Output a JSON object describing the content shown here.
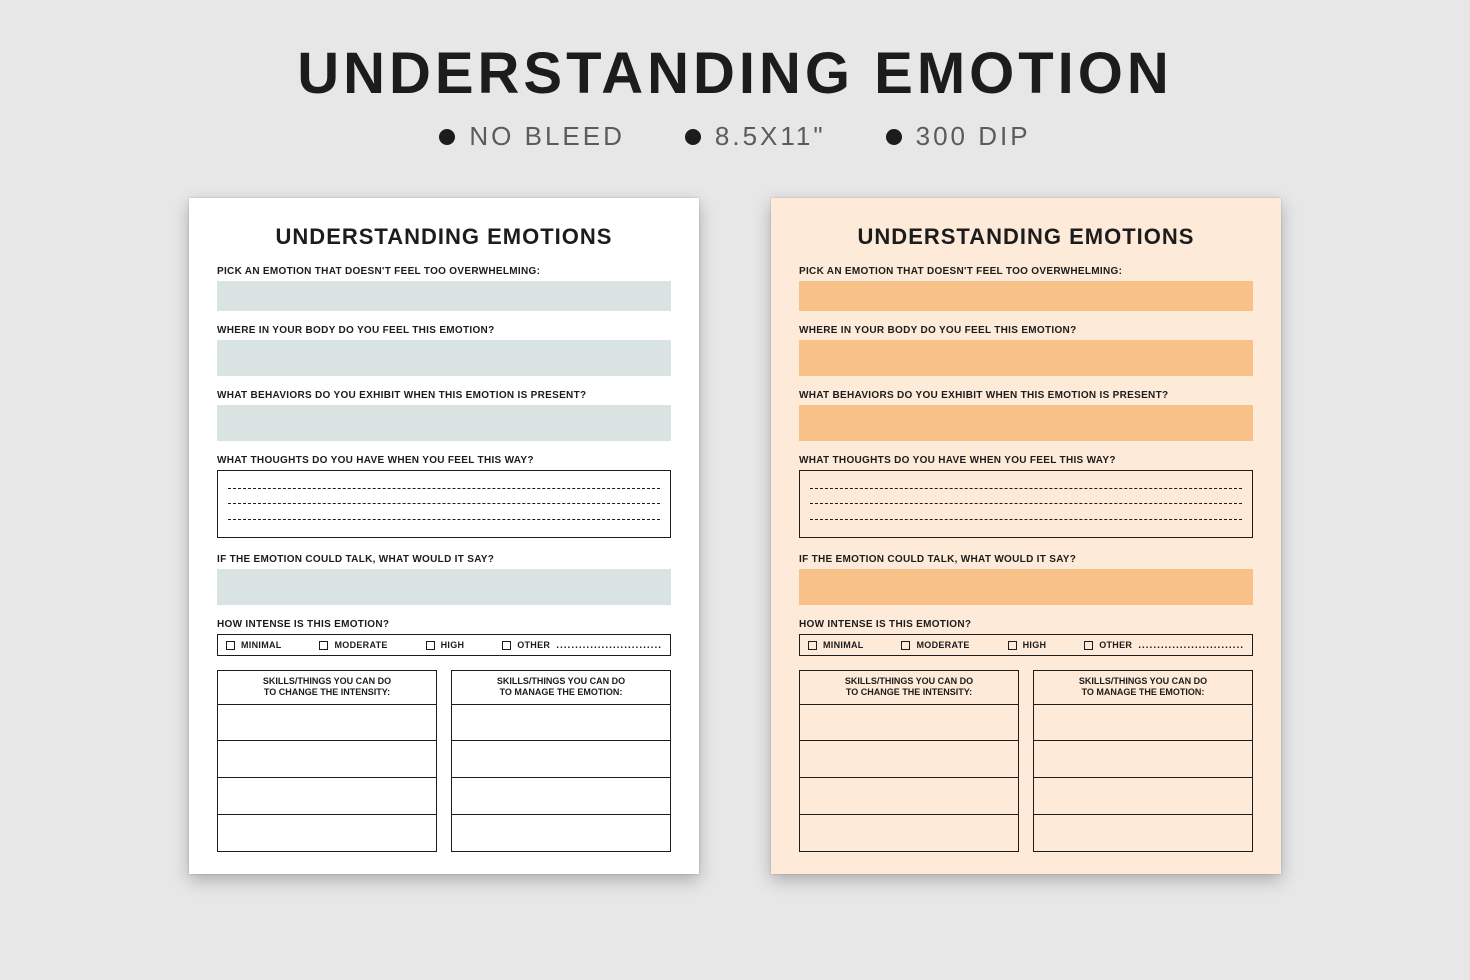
{
  "colors": {
    "canvas_bg": "#e7e7e8",
    "text": "#1c1c1c",
    "spec_text": "#5b5b5b",
    "bullet": "#1c1c1c",
    "line": "#1c1c1c"
  },
  "header": {
    "title": "UNDERSTANDING EMOTION",
    "specs": [
      "NO BLEED",
      "8.5X11\"",
      "300 DIP"
    ]
  },
  "worksheet": {
    "title": "UNDERSTANDING EMOTIONS",
    "prompts": {
      "pick": "PICK AN EMOTION THAT DOESN'T FEEL TOO OVERWHELMING:",
      "body": "WHERE IN YOUR BODY DO YOU FEEL THIS EMOTION?",
      "behaviors": "WHAT BEHAVIORS DO YOU EXHIBIT WHEN THIS EMOTION IS PRESENT?",
      "thoughts": "WHAT THOUGHTS DO YOU HAVE WHEN YOU FEEL THIS WAY?",
      "talk": "IF THE EMOTION COULD TALK, WHAT WOULD IT SAY?",
      "intensity": "HOW INTENSE IS THIS EMOTION?"
    },
    "intensity_options": [
      "MINIMAL",
      "MODERATE",
      "HIGH",
      "OTHER"
    ],
    "other_dots": "............................",
    "skills": {
      "left_line1": "SKILLS/THINGS YOU CAN DO",
      "left_line2": "TO CHANGE THE INTENSITY:",
      "right_line1": "SKILLS/THINGS YOU CAN DO",
      "right_line2": "TO MANAGE THE EMOTION:",
      "row_count": 4
    },
    "dash_rows": 3,
    "option_gaps": [
      34,
      34,
      34
    ]
  },
  "variants": [
    {
      "name": "white",
      "page_bg": "#ffffff",
      "fill_color": "#d9e3e2"
    },
    {
      "name": "peach",
      "page_bg": "#fdead8",
      "fill_color": "#f7c188"
    }
  ]
}
